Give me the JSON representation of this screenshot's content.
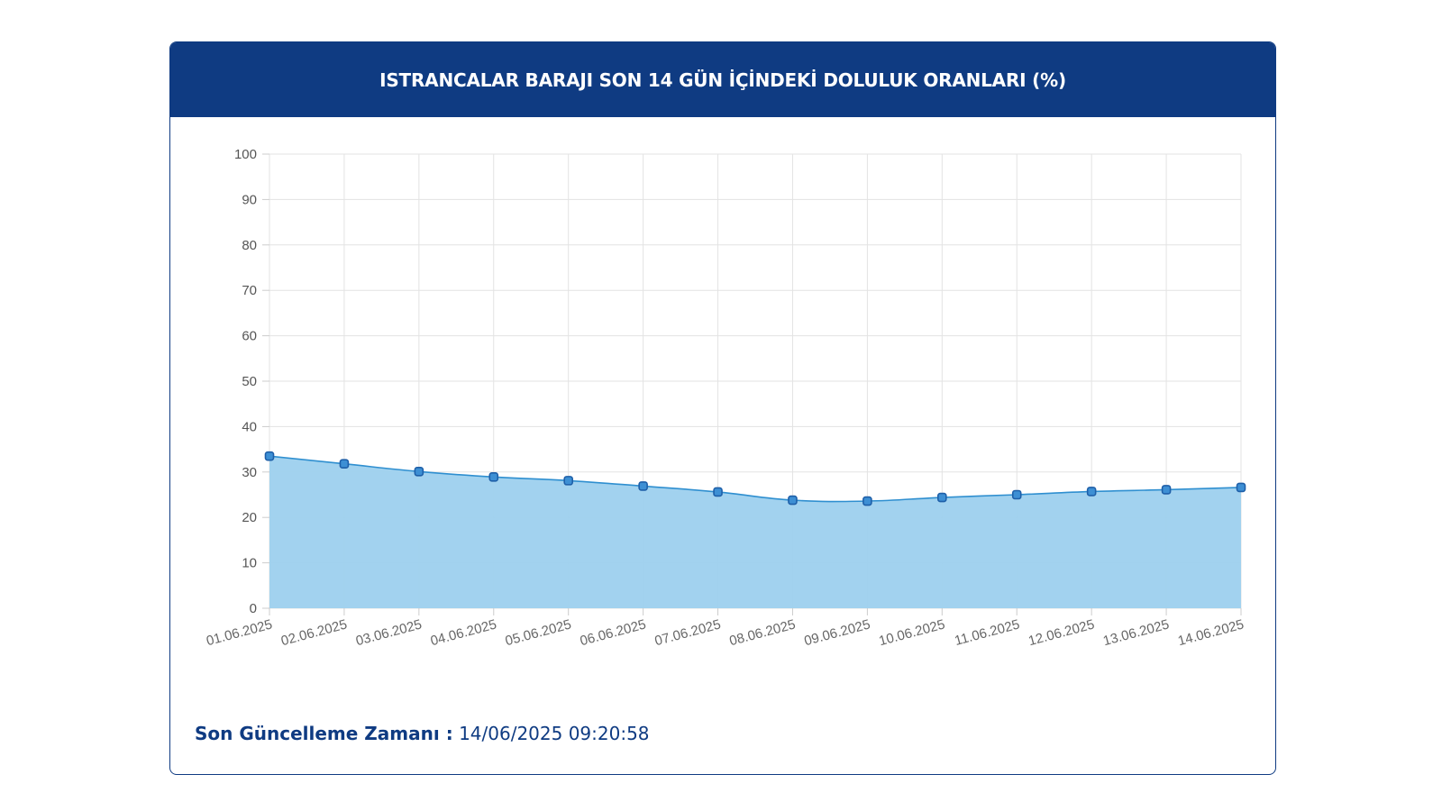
{
  "header": {
    "title": "ISTRANCALAR BARAJI SON 14 GÜN İÇİNDEKİ DOLULUK ORANLARI (%)"
  },
  "footer": {
    "label": "Son Güncelleme Zamanı :",
    "value": "14/06/2025 09:20:58"
  },
  "colors": {
    "header_bg": "#0f3b82",
    "area_fill": "#9dd0ee",
    "line": "#2f8fd0",
    "marker_stroke": "#1e5fa8",
    "grid": "#e3e3e3"
  },
  "chart_data": {
    "type": "area",
    "categories": [
      "01.06.2025",
      "02.06.2025",
      "03.06.2025",
      "04.06.2025",
      "05.06.2025",
      "06.06.2025",
      "07.06.2025",
      "08.06.2025",
      "09.06.2025",
      "10.06.2025",
      "11.06.2025",
      "12.06.2025",
      "13.06.2025",
      "14.06.2025"
    ],
    "values": [
      33.5,
      31.8,
      30.1,
      28.9,
      28.1,
      26.9,
      25.6,
      23.8,
      23.6,
      24.4,
      25.0,
      25.7,
      26.1,
      26.6
    ],
    "y_ticks": [
      0,
      10,
      20,
      30,
      40,
      50,
      60,
      70,
      80,
      90,
      100
    ],
    "ylim": [
      0,
      100
    ],
    "grid": true,
    "legend": "none"
  }
}
